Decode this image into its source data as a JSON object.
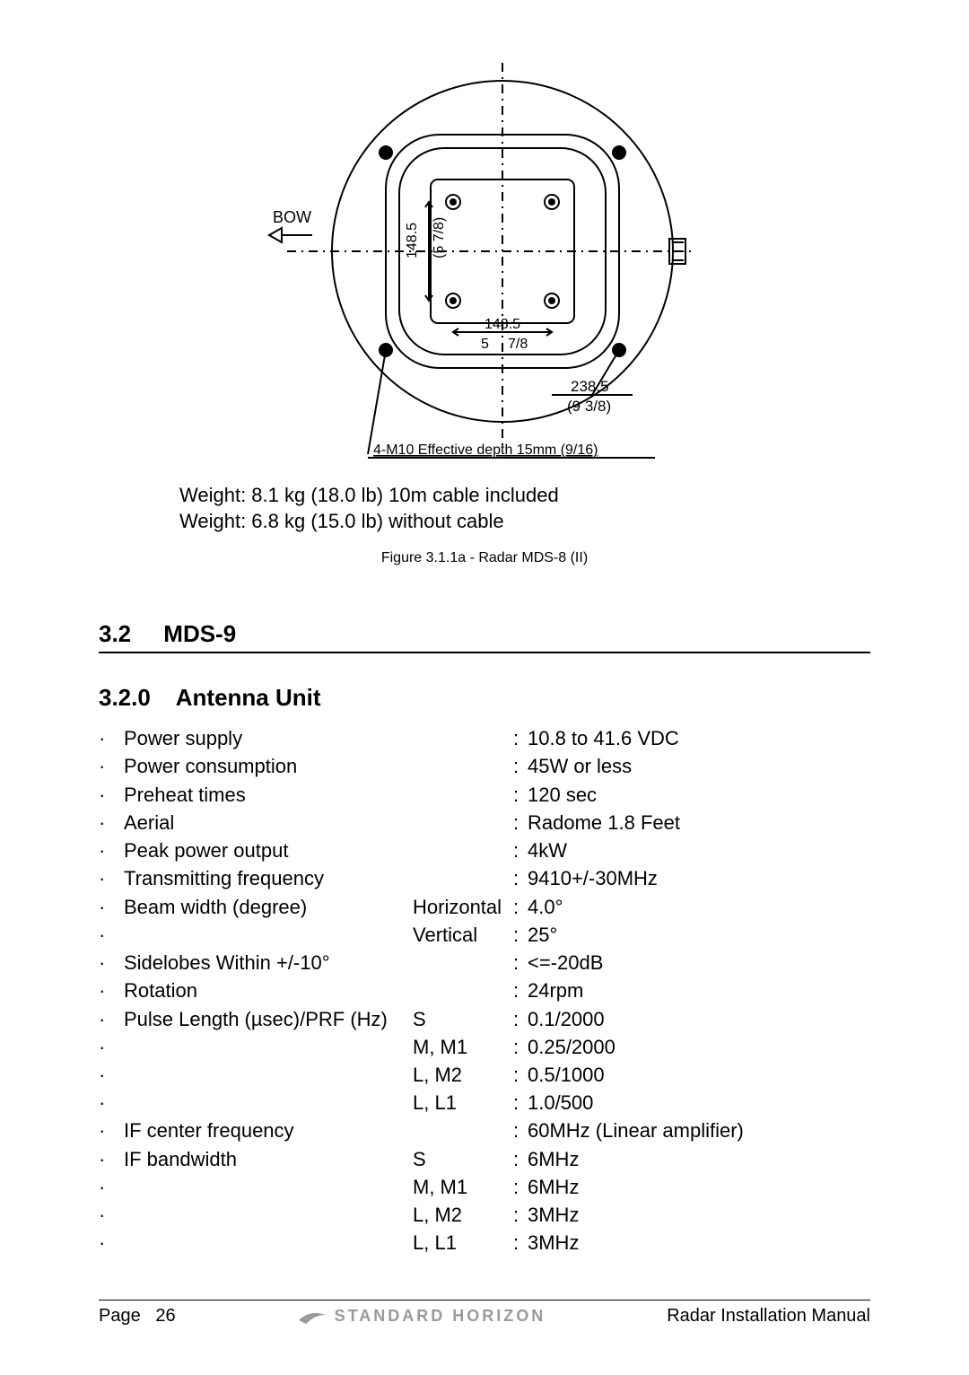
{
  "diagram": {
    "bow_label": "BOW",
    "dim_v_main": "148.5",
    "dim_v_sub": "(5 7/8)",
    "dim_h_main": "148.5",
    "dim_h_sub_left": "5",
    "dim_h_sub_right": "7/8",
    "dim_outer_main": "238.5",
    "dim_outer_sub": "(9 3/8)",
    "note_line": "4-M10   Effective depth 15mm (9/16)",
    "weight_line1": "Weight: 8.1 kg (18.0 lb) 10m cable included",
    "weight_line2": "Weight: 6.8 kg (15.0 lb) without cable",
    "caption": "Figure 3.1.1a - Radar MDS-8 (II)"
  },
  "section": {
    "num": "3.2",
    "title": "MDS-9"
  },
  "subsection": {
    "num": "3.2.0",
    "title": "Antenna Unit"
  },
  "specs": [
    {
      "bullet": "·",
      "label": "Power supply",
      "mid": "",
      "value": "10.8 to 41.6 VDC"
    },
    {
      "bullet": "·",
      "label": "Power consumption",
      "mid": "",
      "value": "45W or less"
    },
    {
      "bullet": "·",
      "label": "Preheat times",
      "mid": "",
      "value": "120 sec"
    },
    {
      "bullet": "·",
      "label": "Aerial",
      "mid": "",
      "value": "Radome 1.8 Feet"
    },
    {
      "bullet": "·",
      "label": "Peak power output",
      "mid": "",
      "value": "4kW"
    },
    {
      "bullet": "·",
      "label": "Transmitting frequency",
      "mid": "",
      "value": "9410+/-30MHz"
    },
    {
      "bullet": "·",
      "label": "Beam width (degree)",
      "mid": "Horizontal",
      "value": "4.0°"
    },
    {
      "bullet": "·",
      "label": "",
      "mid": "Vertical",
      "value": "25°"
    },
    {
      "bullet": "·",
      "label": "Sidelobes Within +/-10°",
      "mid": "",
      "value": "<=-20dB"
    },
    {
      "bullet": "·",
      "label": "Rotation",
      "mid": "",
      "value": "24rpm"
    },
    {
      "bullet": "·",
      "label": "Pulse Length (µsec)/PRF (Hz)",
      "mid": "S",
      "value": "0.1/2000"
    },
    {
      "bullet": "·",
      "label": "",
      "mid": "M, M1",
      "value": "0.25/2000"
    },
    {
      "bullet": "·",
      "label": "",
      "mid": "L, M2",
      "value": "0.5/1000"
    },
    {
      "bullet": "·",
      "label": "",
      "mid": "L, L1",
      "value": "1.0/500"
    },
    {
      "bullet": "·",
      "label": "IF center frequency",
      "mid": "",
      "value": "60MHz (Linear amplifier)"
    },
    {
      "bullet": "·",
      "label": "IF bandwidth",
      "mid": "S",
      "value": "6MHz"
    },
    {
      "bullet": "·",
      "label": "",
      "mid": "M, M1",
      "value": "6MHz"
    },
    {
      "bullet": "·",
      "label": "",
      "mid": "L, M2",
      "value": "3MHz"
    },
    {
      "bullet": "·",
      "label": "",
      "mid": "L, L1",
      "value": "3MHz"
    }
  ],
  "footer": {
    "page_label": "Page",
    "page_num": "26",
    "brand": "STANDARD HORIZON",
    "doc": "Radar Installation Manual"
  },
  "style": {
    "stroke": "#000000",
    "bg": "#ffffff",
    "text_color": "#000000",
    "brand_color": "#9a9a9a",
    "body_fontsize": 22,
    "caption_fontsize": 16,
    "heading_fontsize": 26
  }
}
